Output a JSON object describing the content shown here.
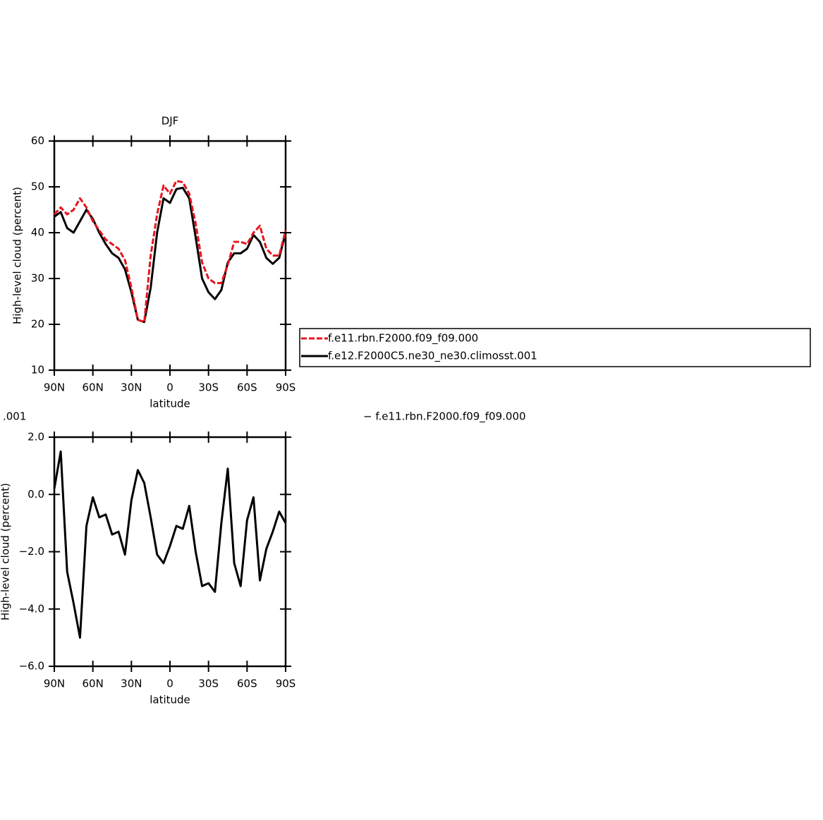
{
  "chart_data": [
    {
      "type": "line",
      "title": "DJF",
      "xlabel": "latitude",
      "ylabel": "High-level cloud (percent)",
      "x": [
        90,
        85,
        80,
        75,
        70,
        65,
        60,
        55,
        50,
        45,
        40,
        35,
        30,
        25,
        20,
        15,
        10,
        5,
        0,
        -5,
        -10,
        -15,
        -20,
        -25,
        -30,
        -35,
        -40,
        -45,
        -50,
        -55,
        -60,
        -65,
        -70,
        -75,
        -80,
        -85,
        -90
      ],
      "xlim": [
        90,
        -90
      ],
      "xticks": [
        {
          "value": 90,
          "label": "90N"
        },
        {
          "value": 60,
          "label": "60N"
        },
        {
          "value": 30,
          "label": "30N"
        },
        0,
        {
          "value": -30,
          "label": "30S"
        },
        {
          "value": -60,
          "label": "60S"
        },
        {
          "value": -90,
          "label": "90S"
        }
      ],
      "ylim": [
        10,
        60
      ],
      "yticks": [
        10,
        20,
        30,
        40,
        50,
        60
      ],
      "legend": "right",
      "series": [
        {
          "name": "f.e11.rbn.F2000.f09_f09.000",
          "color": "#e8141c",
          "dash": true,
          "values": [
            44,
            45.5,
            44,
            45,
            47.5,
            45.5,
            42.5,
            40.5,
            38.5,
            37.5,
            36.5,
            34,
            28,
            21,
            20.5,
            35,
            44,
            50.3,
            48.5,
            51.3,
            51,
            48.5,
            42,
            33.5,
            30,
            29,
            29,
            33,
            38,
            38,
            37.5,
            40,
            41.5,
            36.5,
            35,
            35,
            40.5
          ]
        },
        {
          "name": "f.e12.F2000C5.ne30_ne30.climosst.001",
          "color": "#000000",
          "dash": false,
          "values": [
            43.5,
            44.5,
            41,
            40,
            42.5,
            45,
            43,
            40,
            37.5,
            35.5,
            34.5,
            32,
            27,
            21,
            20.5,
            28,
            40,
            47.5,
            46.5,
            49.5,
            49.8,
            47.5,
            39,
            30,
            27,
            25.5,
            27.5,
            33.5,
            35.5,
            35.5,
            36.5,
            39.5,
            38,
            34.5,
            33.2,
            34.5,
            40
          ]
        }
      ]
    },
    {
      "type": "line",
      "title_fragments": [
        ".001",
        "− f.e11.rbn.F2000.f09_f09.000"
      ],
      "xlabel": "latitude",
      "ylabel": "High-level cloud (percent)",
      "x": [
        90,
        85,
        80,
        75,
        70,
        65,
        60,
        55,
        50,
        45,
        40,
        35,
        30,
        25,
        20,
        15,
        10,
        5,
        0,
        -5,
        -10,
        -15,
        -20,
        -25,
        -30,
        -35,
        -40,
        -45,
        -50,
        -55,
        -60,
        -65,
        -70,
        -75,
        -80,
        -85,
        -90
      ],
      "xlim": [
        90,
        -90
      ],
      "xticks": [
        {
          "value": 90,
          "label": "90N"
        },
        {
          "value": 60,
          "label": "60N"
        },
        {
          "value": 30,
          "label": "30N"
        },
        0,
        {
          "value": -30,
          "label": "30S"
        },
        {
          "value": -60,
          "label": "60S"
        },
        {
          "value": -90,
          "label": "90S"
        }
      ],
      "ylim": [
        -6,
        2
      ],
      "yticks": [
        {
          "value": -6,
          "label": "−6.0"
        },
        {
          "value": -4,
          "label": "−4.0"
        },
        {
          "value": -2,
          "label": "−2.0"
        },
        {
          "value": 0,
          "label": "0.0"
        },
        {
          "value": 2,
          "label": "2.0"
        }
      ],
      "color": "#000000",
      "values": [
        0.2,
        1.5,
        -2.7,
        -3.8,
        -5,
        -1.1,
        -0.1,
        -0.8,
        -0.7,
        -1.4,
        -1.3,
        -2.1,
        -0.2,
        0.85,
        0.4,
        -0.8,
        -2.1,
        -2.4,
        -1.8,
        -1.1,
        -1.2,
        -0.4,
        -2,
        -3.2,
        -3.1,
        -3.4,
        -1,
        0.9,
        -2.4,
        -3.2,
        -0.9,
        -0.1,
        -3,
        -1.9,
        -1.3,
        -0.6,
        -1
      ]
    }
  ]
}
